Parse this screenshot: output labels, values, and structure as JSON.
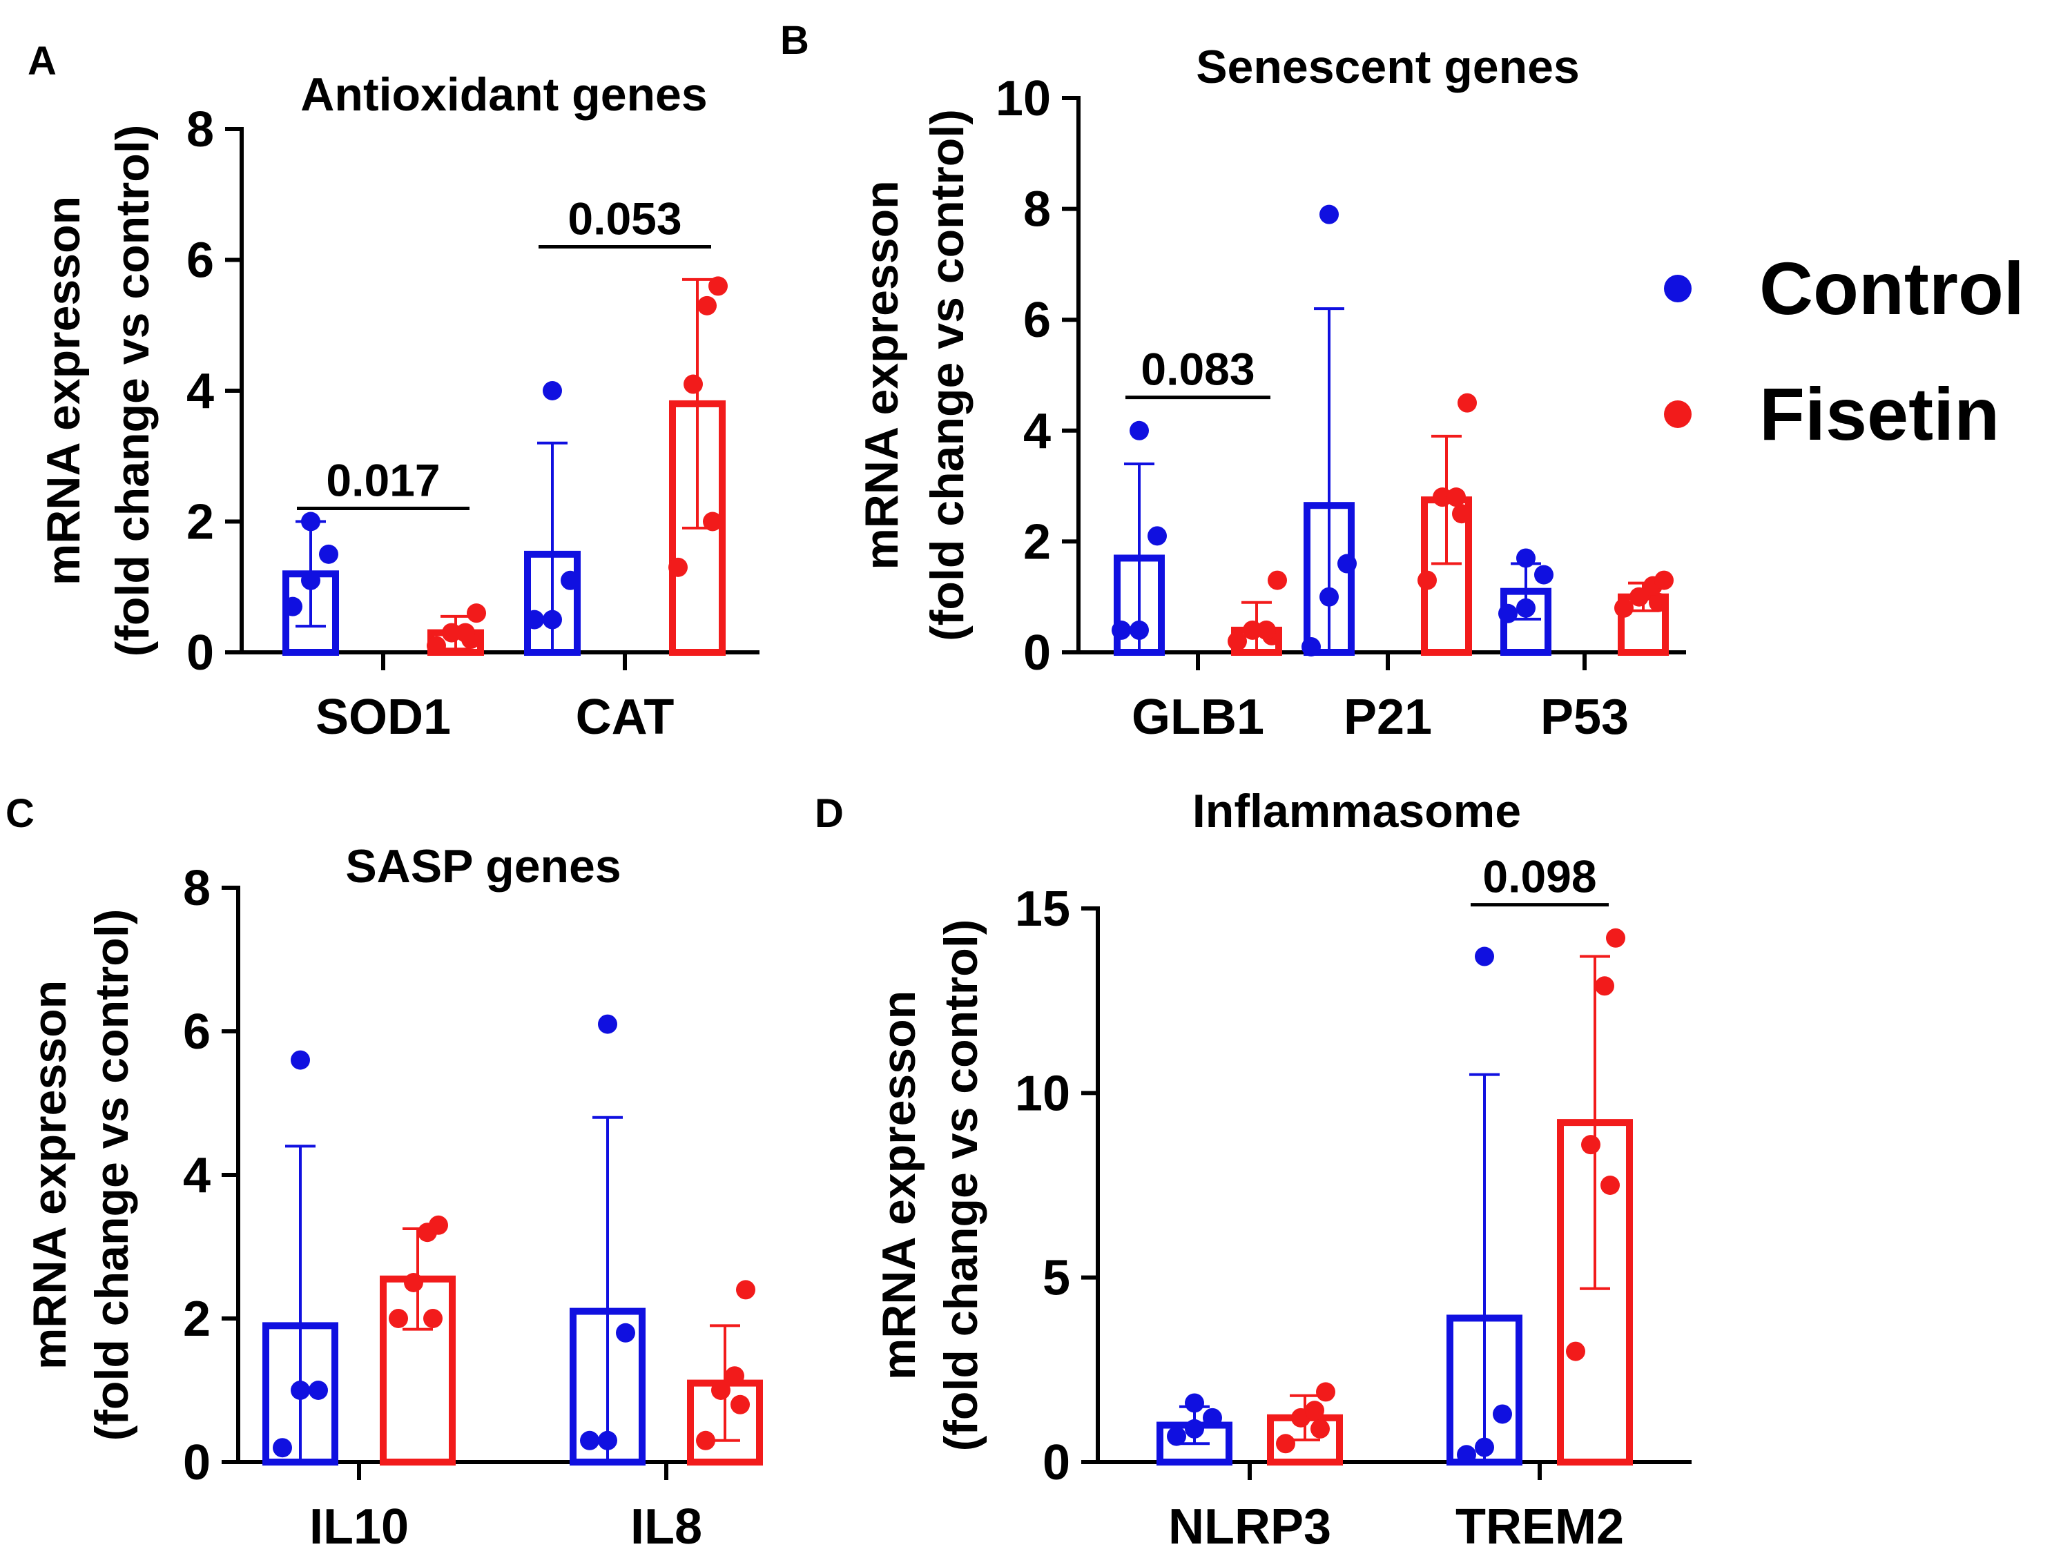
{
  "chart_data": [
    {
      "type": "bar",
      "panel": "A",
      "title": "Antioxidant genes",
      "ylabel": [
        "mRNA expresson",
        "(fold change vs control)"
      ],
      "ylim": [
        0,
        8
      ],
      "yticks": [
        0,
        2,
        4,
        6,
        8
      ],
      "categories": [
        "SOD1",
        "CAT"
      ],
      "series": [
        {
          "name": "Control",
          "color": "#1010e0",
          "values": [
            1.2,
            1.5
          ],
          "sd": [
            0.8,
            1.7
          ],
          "points": [
            [
              0.7,
              1.1,
              1.5,
              2.0
            ],
            [
              0.5,
              0.5,
              1.1,
              4.0
            ]
          ]
        },
        {
          "name": "Fisetin",
          "color": "#f21b1b",
          "values": [
            0.3,
            3.8
          ],
          "sd": [
            0.25,
            1.9
          ],
          "points": [
            [
              0.1,
              0.2,
              0.3,
              0.3,
              0.6
            ],
            [
              1.3,
              2.0,
              4.1,
              5.3,
              5.6
            ]
          ]
        }
      ],
      "annotations": [
        {
          "category": 0,
          "label": "0.017",
          "y": 2.2
        },
        {
          "category": 1,
          "label": "0.053",
          "y": 6.2
        }
      ]
    },
    {
      "type": "bar",
      "panel": "B",
      "title": "Senescent genes",
      "ylabel": [
        "mRNA expresson",
        "(fold change vs control)"
      ],
      "ylim": [
        0,
        10
      ],
      "yticks": [
        0,
        2,
        4,
        6,
        8,
        10
      ],
      "categories": [
        "GLB1",
        "P21",
        "P53"
      ],
      "series": [
        {
          "name": "Control",
          "color": "#1010e0",
          "values": [
            1.7,
            2.65,
            1.1
          ],
          "sd": [
            1.7,
            3.55,
            0.5
          ],
          "points": [
            [
              0.4,
              0.4,
              2.1,
              4.0
            ],
            [
              0.1,
              1.0,
              1.6,
              7.9
            ],
            [
              0.7,
              0.8,
              1.4,
              1.7
            ]
          ]
        },
        {
          "name": "Fisetin",
          "color": "#f21b1b",
          "values": [
            0.4,
            2.75,
            1.0
          ],
          "sd": [
            0.5,
            1.15,
            0.25
          ],
          "points": [
            [
              0.2,
              0.3,
              0.4,
              0.4,
              1.3
            ],
            [
              1.3,
              2.5,
              2.8,
              2.8,
              4.5
            ],
            [
              0.8,
              0.9,
              1.0,
              1.2,
              1.3
            ]
          ]
        }
      ],
      "annotations": [
        {
          "category": 0,
          "label": "0.083",
          "y": 4.6
        }
      ]
    },
    {
      "type": "bar",
      "panel": "C",
      "title": "SASP genes",
      "ylabel": [
        "mRNA expresson",
        "(fold change vs control)"
      ],
      "ylim": [
        0,
        8
      ],
      "yticks": [
        0,
        2,
        4,
        6,
        8
      ],
      "categories": [
        "IL10",
        "IL8"
      ],
      "series": [
        {
          "name": "Control",
          "color": "#1010e0",
          "values": [
            1.9,
            2.1
          ],
          "sd": [
            2.5,
            2.7
          ],
          "points": [
            [
              0.2,
              1.0,
              1.0,
              5.6
            ],
            [
              0.3,
              0.3,
              1.8,
              6.1
            ]
          ]
        },
        {
          "name": "Fisetin",
          "color": "#f21b1b",
          "values": [
            2.55,
            1.1
          ],
          "sd": [
            0.7,
            0.8
          ],
          "points": [
            [
              2.0,
              2.0,
              2.5,
              3.2,
              3.3
            ],
            [
              0.3,
              0.8,
              1.0,
              1.2,
              2.4
            ]
          ]
        }
      ],
      "annotations": []
    },
    {
      "type": "bar",
      "panel": "D",
      "title": "Inflammasome",
      "ylabel": [
        "mRNA expresson",
        "(fold change vs control)"
      ],
      "ylim": [
        0,
        15
      ],
      "yticks": [
        0,
        5,
        10,
        15
      ],
      "categories": [
        "NLRP3",
        "TREM2"
      ],
      "series": [
        {
          "name": "Control",
          "color": "#1010e0",
          "values": [
            1.0,
            3.9
          ],
          "sd": [
            0.5,
            6.6
          ],
          "points": [
            [
              0.7,
              0.9,
              1.2,
              1.6
            ],
            [
              0.2,
              0.4,
              1.3,
              13.7
            ]
          ]
        },
        {
          "name": "Fisetin",
          "color": "#f21b1b",
          "values": [
            1.2,
            9.2
          ],
          "sd": [
            0.6,
            4.5
          ],
          "points": [
            [
              0.5,
              0.9,
              1.2,
              1.4,
              1.9
            ],
            [
              3.0,
              7.5,
              8.6,
              12.9,
              14.2
            ]
          ]
        }
      ],
      "annotations": [
        {
          "category": 1,
          "label": "0.098",
          "y": 15.1
        }
      ]
    }
  ],
  "legend": {
    "entries": [
      {
        "label": "Control",
        "color": "#1010e0"
      },
      {
        "label": "Fisetin",
        "color": "#f21b1b"
      }
    ]
  }
}
